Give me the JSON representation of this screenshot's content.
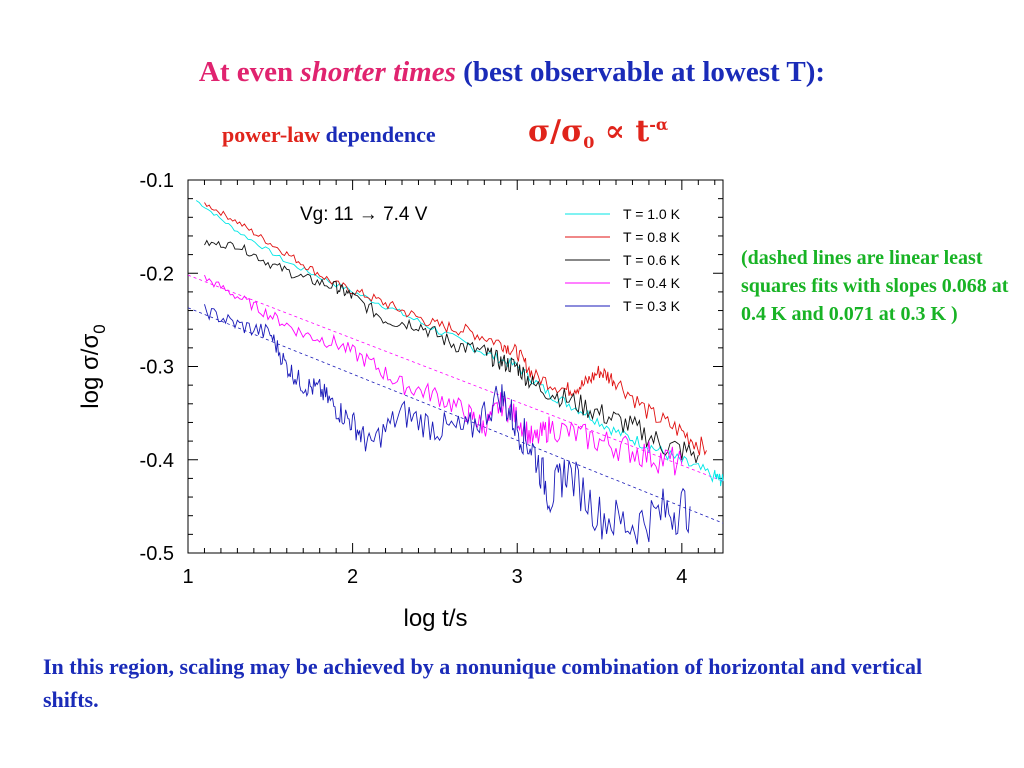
{
  "header": {
    "title_part1": "At even ",
    "title_part2": "shorter times",
    "title_part3": " (best observable at lowest T):",
    "subtitle_part1": "power-law",
    "subtitle_part2": " dependence",
    "formula_main": "σ/σ",
    "formula_sub": "0",
    "formula_prop": " ∝ t",
    "formula_sup": "-α"
  },
  "note": "(dashed lines are linear least squares fits with slopes 0.068 at 0.4 K and 0.071 at 0.3 K )",
  "footer": "In this region, scaling may be achieved by a nonunique combination of horizontal and vertical shifts.",
  "colors": {
    "title": "#e0236f",
    "accent_blue": "#1a2bb8",
    "accent_red": "#e0241b",
    "note_green": "#18b325"
  },
  "chart_data": {
    "type": "line",
    "annotation": "Vg:  11 → 7.4 V",
    "xlabel": "log t/s",
    "ylabel_main": "log σ/σ",
    "ylabel_sub": "0",
    "xlim": [
      1.0,
      4.25
    ],
    "ylim": [
      -0.5,
      -0.1
    ],
    "x_ticks": [
      1,
      2,
      3,
      4
    ],
    "x_tick_labels": [
      "1",
      "2",
      "3",
      "4"
    ],
    "y_ticks": [
      -0.1,
      -0.2,
      -0.3,
      -0.4,
      -0.5
    ],
    "y_tick_labels": [
      "-0.1",
      "-0.2",
      "-0.3",
      "-0.4",
      "-0.5"
    ],
    "legend_position": "top-right",
    "series": [
      {
        "name": "T = 1.0 K",
        "color": "#00e6e6",
        "x": [
          1.05,
          1.3,
          1.6,
          1.9,
          2.2,
          2.5,
          2.8,
          3.0,
          3.2,
          3.4,
          3.6,
          3.8,
          4.0,
          4.2,
          4.25
        ],
        "y": [
          -0.122,
          -0.155,
          -0.188,
          -0.212,
          -0.235,
          -0.26,
          -0.285,
          -0.3,
          -0.33,
          -0.348,
          -0.37,
          -0.385,
          -0.402,
          -0.418,
          -0.423
        ]
      },
      {
        "name": "T = 0.8 K",
        "color": "#e01010",
        "x": [
          1.1,
          1.3,
          1.5,
          1.7,
          1.9,
          2.1,
          2.3,
          2.5,
          2.7,
          2.9,
          3.0,
          3.1,
          3.3,
          3.4,
          3.5,
          3.6,
          3.8,
          4.0,
          4.15
        ],
        "y": [
          -0.125,
          -0.145,
          -0.168,
          -0.19,
          -0.212,
          -0.225,
          -0.24,
          -0.255,
          -0.262,
          -0.275,
          -0.285,
          -0.31,
          -0.325,
          -0.32,
          -0.305,
          -0.315,
          -0.35,
          -0.37,
          -0.39
        ]
      },
      {
        "name": "T = 0.6 K",
        "color": "#111111",
        "x": [
          1.1,
          1.3,
          1.5,
          1.7,
          1.9,
          2.0,
          2.2,
          2.4,
          2.6,
          2.8,
          2.9,
          3.0,
          3.1,
          3.3,
          3.5,
          3.7,
          3.9,
          4.1
        ],
        "y": [
          -0.168,
          -0.17,
          -0.19,
          -0.205,
          -0.215,
          -0.225,
          -0.25,
          -0.255,
          -0.275,
          -0.285,
          -0.295,
          -0.3,
          -0.32,
          -0.335,
          -0.35,
          -0.365,
          -0.385,
          -0.395
        ]
      },
      {
        "name": "T = 0.4 K",
        "color": "#ff00ff",
        "x": [
          1.1,
          1.3,
          1.5,
          1.7,
          1.9,
          2.1,
          2.3,
          2.5,
          2.7,
          2.8,
          2.9,
          3.0,
          3.1,
          3.2,
          3.4,
          3.6,
          3.8,
          4.0
        ],
        "y": [
          -0.205,
          -0.225,
          -0.245,
          -0.265,
          -0.275,
          -0.295,
          -0.32,
          -0.33,
          -0.35,
          -0.365,
          -0.34,
          -0.355,
          -0.38,
          -0.365,
          -0.375,
          -0.385,
          -0.395,
          -0.405
        ]
      },
      {
        "name": "T = 0.3 K",
        "color": "#1a1ab8",
        "x": [
          1.1,
          1.3,
          1.5,
          1.6,
          1.7,
          1.8,
          1.9,
          2.0,
          2.1,
          2.3,
          2.5,
          2.7,
          2.9,
          3.0,
          3.1,
          3.2,
          3.3,
          3.5,
          3.7,
          3.9,
          4.05
        ],
        "y": [
          -0.24,
          -0.255,
          -0.265,
          -0.3,
          -0.32,
          -0.325,
          -0.345,
          -0.36,
          -0.385,
          -0.35,
          -0.365,
          -0.37,
          -0.33,
          -0.365,
          -0.39,
          -0.44,
          -0.41,
          -0.46,
          -0.47,
          -0.455,
          -0.45
        ]
      }
    ],
    "fits": [
      {
        "color": "#ff00ff",
        "x": [
          1.0,
          4.25
        ],
        "y": [
          -0.202,
          -0.423
        ]
      },
      {
        "color": "#1a1ab8",
        "x": [
          1.0,
          4.25
        ],
        "y": [
          -0.237,
          -0.468
        ]
      }
    ]
  }
}
